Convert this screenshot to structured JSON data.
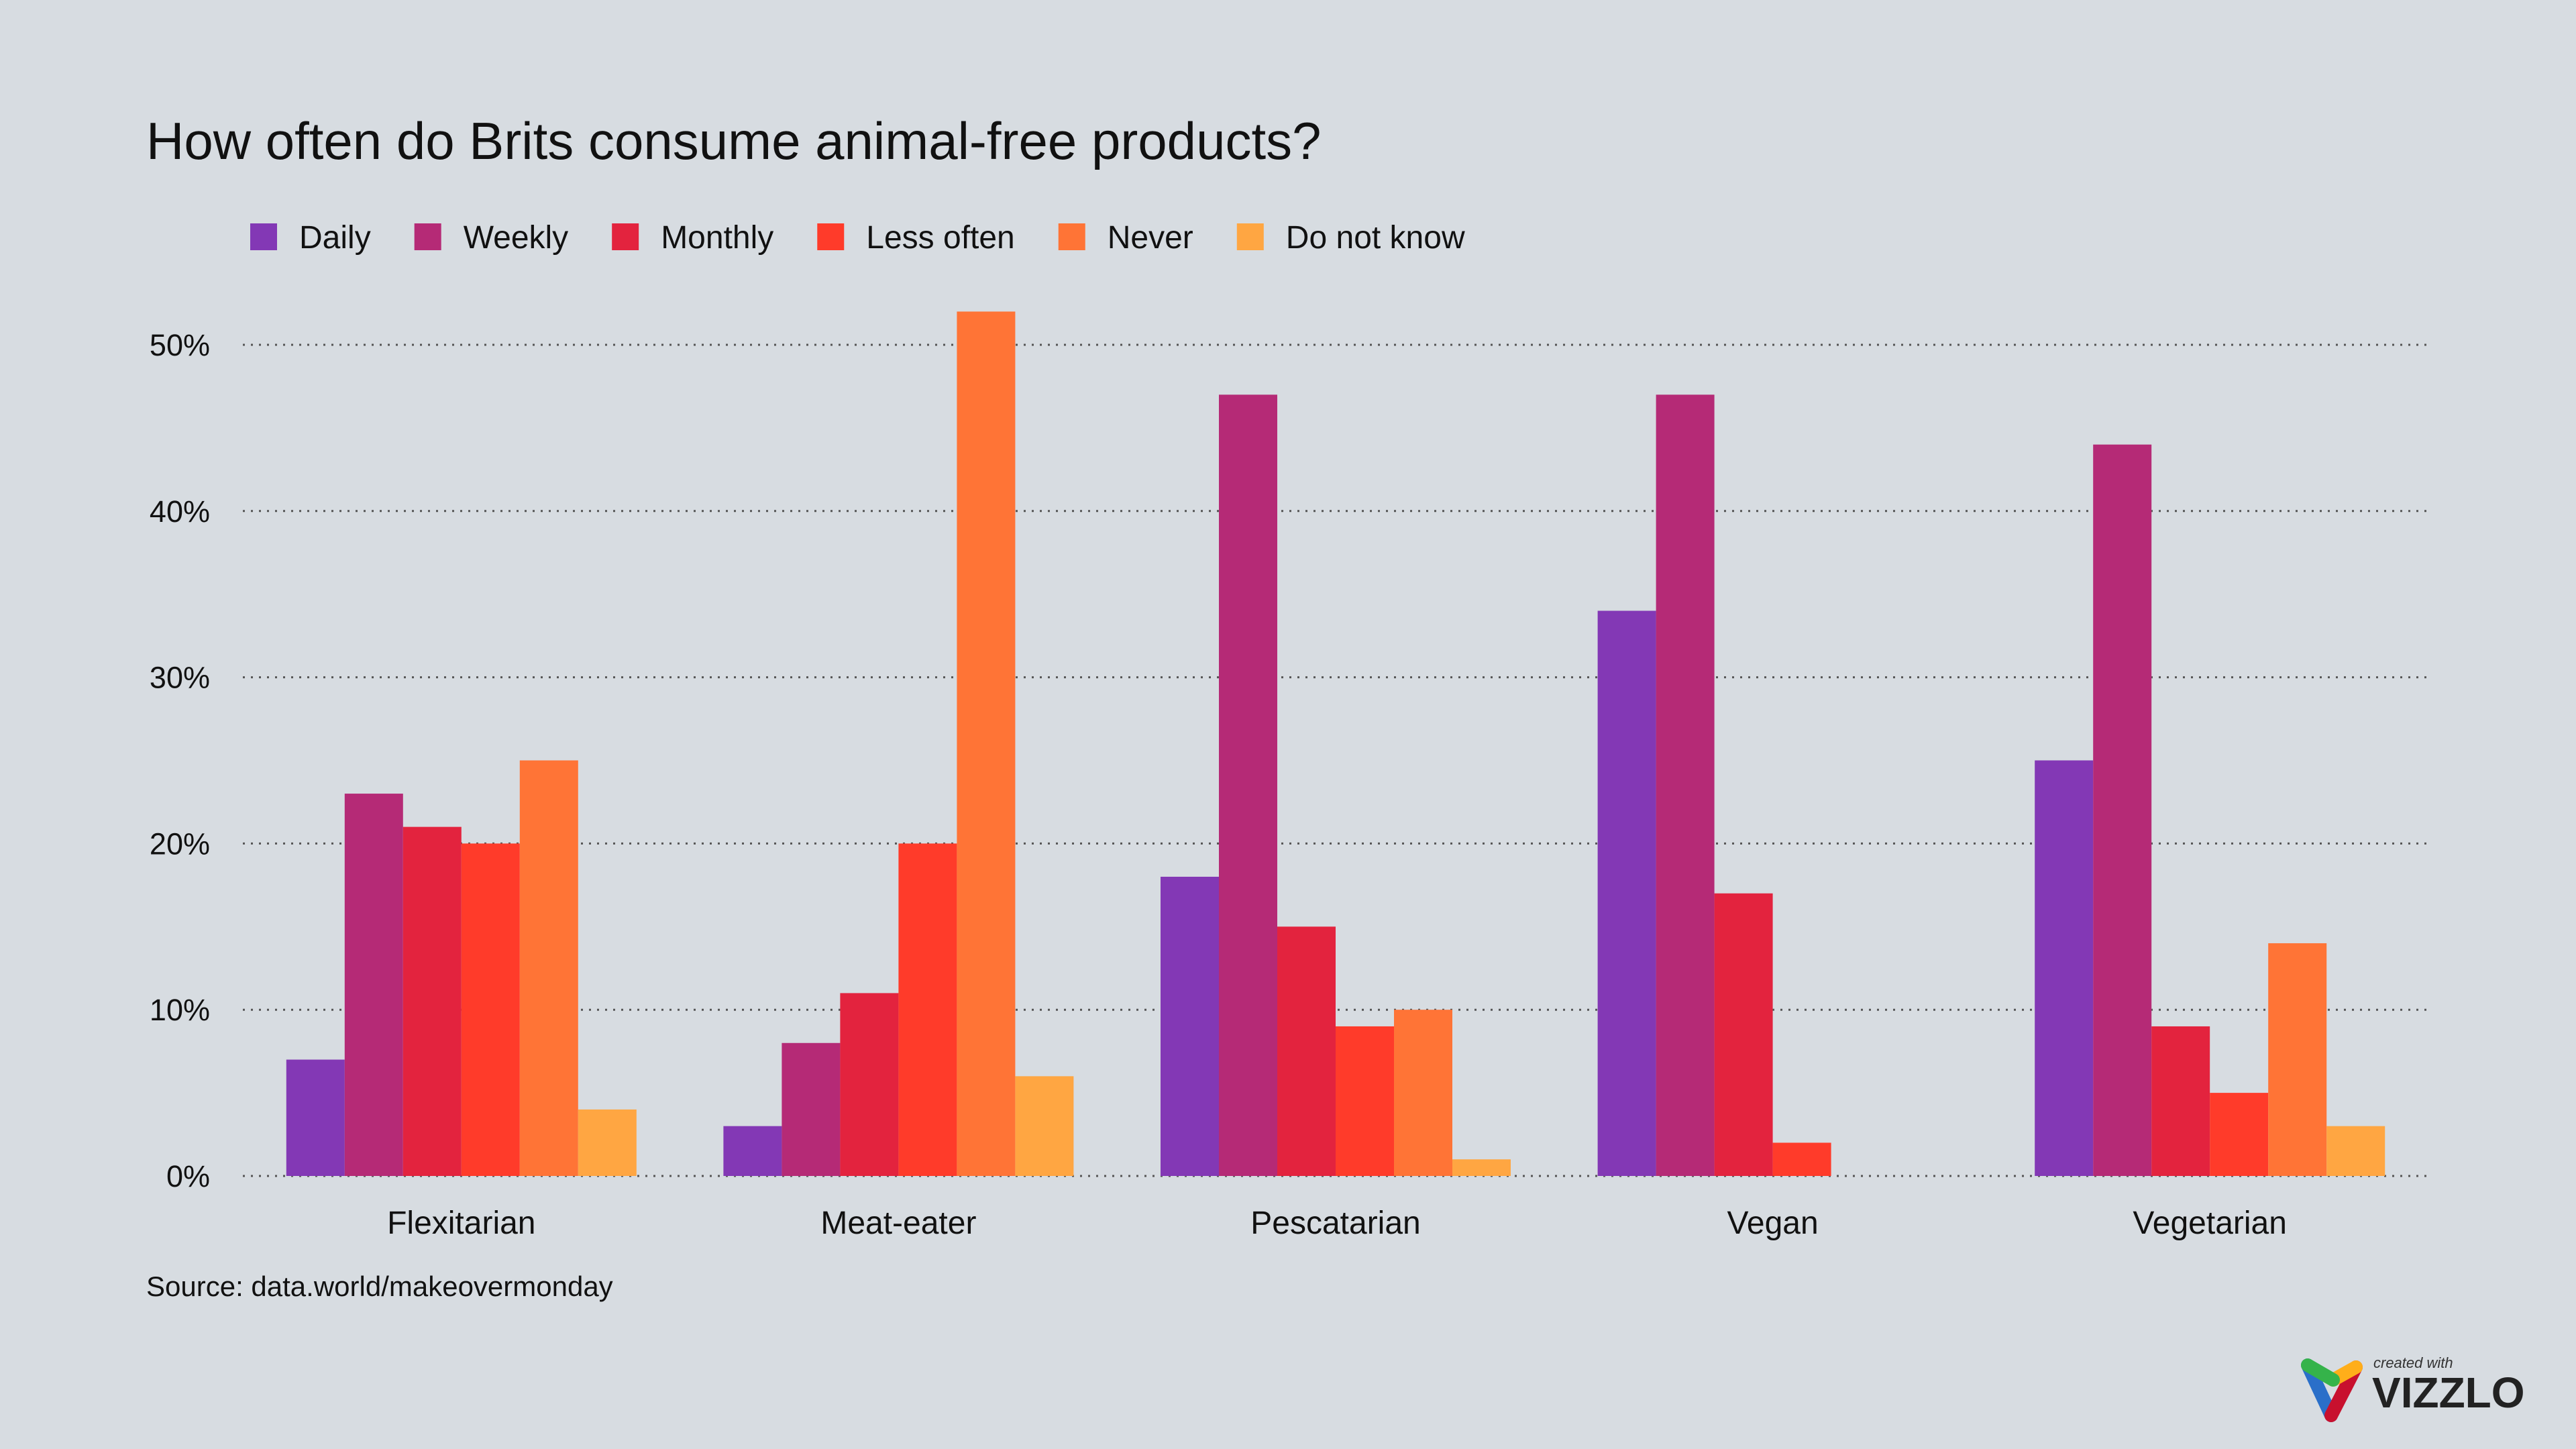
{
  "chart_data": {
    "type": "bar",
    "title": "How often do Brits consume animal-free products?",
    "source": "Source: data.world/makeovermonday",
    "categories": [
      "Flexitarian",
      "Meat-eater",
      "Pescatarian",
      "Vegan",
      "Vegetarian"
    ],
    "series": [
      {
        "name": "Daily",
        "color": "#8338b5",
        "values": [
          7,
          3,
          18,
          34,
          25
        ]
      },
      {
        "name": "Weekly",
        "color": "#b52a76",
        "values": [
          23,
          8,
          47,
          47,
          44
        ]
      },
      {
        "name": "Monthly",
        "color": "#e3233e",
        "values": [
          21,
          11,
          15,
          17,
          9
        ]
      },
      {
        "name": "Less often",
        "color": "#ff3b2a",
        "values": [
          20,
          20,
          9,
          2,
          5
        ]
      },
      {
        "name": "Never",
        "color": "#ff7436",
        "values": [
          25,
          52,
          10,
          0,
          14
        ]
      },
      {
        "name": "Do not know",
        "color": "#ffa642",
        "values": [
          4,
          6,
          1,
          0,
          3
        ]
      }
    ],
    "yticks": [
      "0%",
      "10%",
      "20%",
      "30%",
      "40%",
      "50%"
    ],
    "ylim": [
      0,
      50
    ],
    "grid": true,
    "legend_position": "top-left",
    "xlabel": "",
    "ylabel": ""
  },
  "branding": {
    "line1": "created with",
    "line2": "VIZZLO"
  },
  "background": "#d7dce1"
}
